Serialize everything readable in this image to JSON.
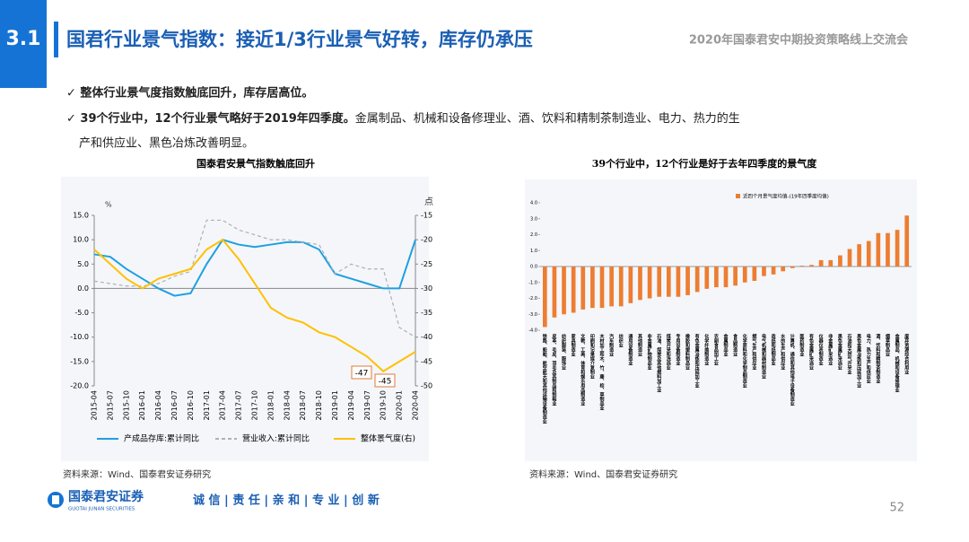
{
  "header": {
    "section": "3.1",
    "title": "国君行业景气指数：接近1/3行业景气好转，库存仍承压",
    "event": "2020年国泰君安中期投资策略线上交流会"
  },
  "bullets": [
    {
      "bold": "✓ 整体行业景气度指数触底回升，库存居高位。"
    },
    {
      "bold": "✓ 39个行业中，12个行业景气略好于2019年四季度。",
      "text": "金属制品、机械和设备修理业、酒、饮料和精制茶制造业、电力、热力的生",
      "text2": "产和供应业、黑色冶炼改善明显。"
    }
  ],
  "chart_data": [
    {
      "type": "line",
      "title": "国泰君安景气指数触底回升",
      "source": "资料来源：Wind、国泰君安证券研究",
      "ylabel": "%",
      "y2label": "点",
      "categories": [
        "2015-04",
        "2015-07",
        "2015-10",
        "2016-01",
        "2016-04",
        "2016-07",
        "2016-10",
        "2017-01",
        "2017-04",
        "2017-07",
        "2017-10",
        "2018-01",
        "2018-04",
        "2018-07",
        "2018-10",
        "2019-01",
        "2019-04",
        "2019-07",
        "2019-10",
        "2020-01",
        "2020-04"
      ],
      "series": [
        {
          "name": "产成品存库:累计同比",
          "color": "#1fa0e0",
          "values": [
            7,
            6.5,
            4,
            2,
            0,
            -1.5,
            -1,
            5,
            10,
            9,
            8.5,
            9,
            9.5,
            9.5,
            8,
            3,
            2,
            1,
            0,
            0,
            10
          ]
        },
        {
          "name": "营业收入:累计同比",
          "color": "#b0b0b0",
          "values": [
            1.5,
            1,
            0.5,
            0.5,
            1,
            2.5,
            3.5,
            14,
            14,
            12,
            11,
            10,
            10,
            9.5,
            9,
            3,
            5,
            4,
            4,
            -8,
            -10
          ]
        },
        {
          "name": "整体景气度(右)",
          "color": "#ffc000",
          "axis": "y2",
          "values": [
            -22,
            -25,
            -28,
            -30,
            -28,
            -27,
            -26,
            -22,
            -20,
            -24,
            -29,
            -34,
            -36,
            -37,
            -39,
            -40,
            -42,
            -44,
            -47,
            -45,
            -43
          ]
        }
      ],
      "annotations": [
        "-47",
        "-45"
      ],
      "ylim": [
        -20,
        15
      ],
      "yticks": [
        {
          "value": 15,
          "label": "15.0"
        },
        {
          "value": 10,
          "label": "10.0"
        },
        {
          "value": 5,
          "label": "5.0"
        },
        {
          "value": 0,
          "label": "0.0"
        },
        {
          "value": -5,
          "label": "-5.0"
        },
        {
          "value": -10,
          "label": "-10.0"
        },
        {
          "value": -15,
          "label": "-15.0"
        },
        {
          "value": -20,
          "label": "-20.0"
        }
      ],
      "y2lim": [
        -50,
        -15
      ],
      "y2ticks": [
        -15,
        -20,
        -25,
        -30,
        -35,
        -40,
        -45,
        -50
      ]
    },
    {
      "type": "bar",
      "title": "39个行业中，12个行业是好于去年四季度的景气度",
      "source": "资料来源：Wind、国泰君安证券研究",
      "color": "#ed7d31",
      "series_name": "近四个月景气度均值-(19年四季度均值)",
      "categories": [
        "铁路、船舶、航空航天和其他运输设备制造业",
        "皮革、毛皮、羽毛及其制品和制鞋业",
        "纺织服装、服饰业",
        "家具制造业",
        "文教、工美、体育和娱乐用品制造业",
        "印刷和记录媒介复制业",
        "木材加工和木、竹、藤、棕、草制品业",
        "汽车制造业",
        "纺织业",
        "通用设备制造业",
        "其他制造业",
        "非金属矿物制品业",
        "石油、煤炭及其他燃料加工业",
        "煤炭开采和洗选业",
        "专用设备制造业",
        "橡胶和塑料制品业",
        "有色金属冶炼和压延加工业",
        "化学纤维制造业",
        "农副食品加工业",
        "金属制品业",
        "食品制造业",
        "化学原料和化学制品制造业",
        "燃气生产和供应业",
        "电气机械和器材制造业",
        "造纸和纸制品业",
        "水的生产和供应业",
        "计算机、通信和其他电子设备制造业",
        "医药制造业",
        "有色金属矿采选业",
        "仪器仪表制造业",
        "非金属矿采选业",
        "黑色金属矿采选业",
        "石油和天然气开采业",
        "黑色金属冶炼和压延加工业",
        "电力、热力生产和供应业",
        "酒、饮料和精制茶制造业",
        "烟草制品业",
        "金属制品、机械和设备修理业",
        "废弃资源综合利用业"
      ],
      "values": [
        -3.8,
        -3.2,
        -3.0,
        -2.9,
        -2.7,
        -2.6,
        -2.6,
        -2.5,
        -2.5,
        -2.3,
        -2.1,
        -2.0,
        -1.9,
        -1.9,
        -1.9,
        -1.8,
        -1.6,
        -1.4,
        -1.3,
        -1.3,
        -1.2,
        -1.0,
        -0.9,
        -0.6,
        -0.5,
        -0.3,
        -0.1,
        0.05,
        0.1,
        0.4,
        0.4,
        0.7,
        1.1,
        1.4,
        1.6,
        2.1,
        2.1,
        2.3,
        3.2
      ],
      "ylim": [
        -4,
        4
      ],
      "yticks": [
        {
          "value": 4,
          "label": "4.0"
        },
        {
          "value": 3,
          "label": "3.0"
        },
        {
          "value": 2,
          "label": "2.0"
        },
        {
          "value": 1,
          "label": "1.0"
        },
        {
          "value": 0,
          "label": "0.0"
        },
        {
          "value": -1,
          "label": "-1.0"
        },
        {
          "value": -2,
          "label": "-2.0"
        },
        {
          "value": -3,
          "label": "-3.0"
        },
        {
          "value": -4,
          "label": "-4.0"
        }
      ]
    }
  ],
  "footer": {
    "logo_cn": "国泰君安证券",
    "logo_en": "GUOTAI JUNAN SECURITIES",
    "slogan": "诚 信 | 责 任 | 亲 和 | 专 业 | 创 新",
    "page": "52"
  }
}
